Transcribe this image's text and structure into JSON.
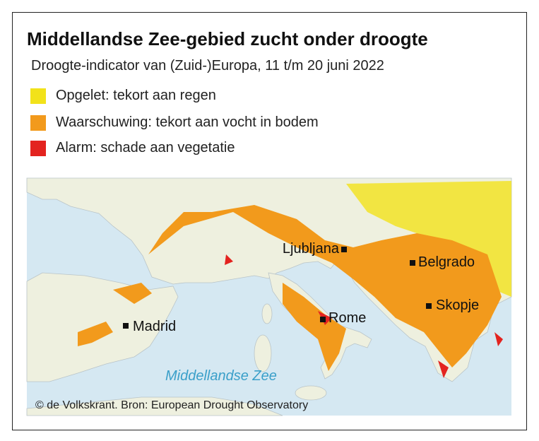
{
  "header": {
    "title": "Middellandse Zee-gebied zucht onder droogte",
    "subtitle": "Droogte-indicator van (Zuid-)Europa, 11 t/m 20 juni 2022"
  },
  "legend": [
    {
      "label": "Opgelet: tekort aan regen",
      "color": "#f2e21a"
    },
    {
      "label": "Waarschuwing: tekort aan vocht in bodem",
      "color": "#f29a1c"
    },
    {
      "label": "Alarm: schade aan vegetatie",
      "color": "#e3231f"
    }
  ],
  "map": {
    "cities": [
      "Ljubljana",
      "Belgrado",
      "Skopje",
      "Rome",
      "Madrid"
    ],
    "sea": "Middellandse Zee"
  },
  "footer": {
    "credit": "© de Volkskrant. Bron: European Drought Observatory"
  }
}
